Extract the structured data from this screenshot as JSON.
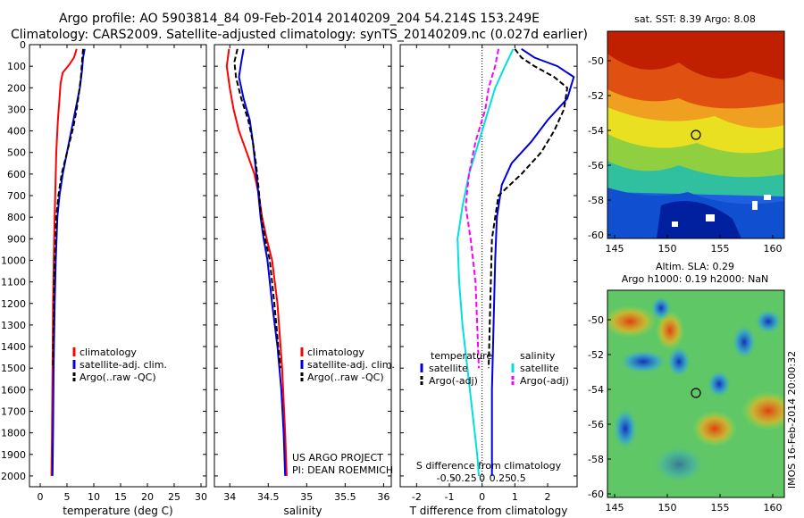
{
  "header": {
    "line1": "Argo profile: AO 5903814_84 09-Feb-2014 20140209_204 54.214S 153.249E",
    "line2": "Climatology: CARS2009. Satellite-adjusted climatology: synTS_20140209.nc (0.027d earlier)"
  },
  "colors": {
    "climatology": "#ff0000",
    "satellite": "#0000dd",
    "argo": "#000000",
    "s_sat": "#00e0e0",
    "s_argo": "#ff00ff"
  },
  "chart_data": [
    {
      "type": "line",
      "name": "temperature-panel",
      "xlabel": "temperature (deg C)",
      "xticks": [
        0,
        5,
        10,
        15,
        20,
        25,
        30
      ],
      "xlim": [
        -2,
        31
      ],
      "ylim": [
        0,
        2050
      ],
      "yticks": [
        0,
        100,
        200,
        300,
        400,
        500,
        600,
        700,
        800,
        900,
        1000,
        1100,
        1200,
        1300,
        1400,
        1500,
        1600,
        1700,
        1800,
        1900,
        2000
      ],
      "legend": [
        "climatology",
        "satellite-adj. clim.",
        "Argo(..raw -QC)"
      ],
      "series": [
        {
          "name": "climatology",
          "color": "#ff0000",
          "dash": "",
          "points": [
            [
              6.8,
              20
            ],
            [
              6.3,
              60
            ],
            [
              5.5,
              90
            ],
            [
              4.2,
              130
            ],
            [
              3.8,
              180
            ],
            [
              3.6,
              250
            ],
            [
              3.3,
              350
            ],
            [
              3.0,
              500
            ],
            [
              2.8,
              700
            ],
            [
              2.6,
              900
            ],
            [
              2.4,
              1200
            ],
            [
              2.3,
              1500
            ],
            [
              2.2,
              1800
            ],
            [
              2.1,
              2000
            ]
          ]
        },
        {
          "name": "satellite-adj. clim.",
          "color": "#0000dd",
          "dash": "",
          "points": [
            [
              8.3,
              20
            ],
            [
              8.0,
              60
            ],
            [
              7.8,
              120
            ],
            [
              7.4,
              200
            ],
            [
              6.6,
              300
            ],
            [
              5.8,
              400
            ],
            [
              5.0,
              500
            ],
            [
              4.2,
              600
            ],
            [
              3.6,
              700
            ],
            [
              3.2,
              800
            ],
            [
              2.9,
              1000
            ],
            [
              2.7,
              1200
            ],
            [
              2.5,
              1500
            ],
            [
              2.4,
              1800
            ],
            [
              2.3,
              2000
            ]
          ]
        },
        {
          "name": "Argo(..raw -QC)",
          "color": "#000000",
          "dash": "6,3",
          "points": [
            [
              8.0,
              20
            ],
            [
              7.8,
              80
            ],
            [
              7.6,
              150
            ],
            [
              7.2,
              230
            ],
            [
              6.8,
              300
            ],
            [
              6.2,
              380
            ],
            [
              5.5,
              450
            ],
            [
              4.8,
              520
            ],
            [
              4.0,
              600
            ],
            [
              3.4,
              700
            ],
            [
              3.0,
              800
            ],
            [
              2.8,
              950
            ],
            [
              2.6,
              1100
            ],
            [
              2.5,
              1300
            ],
            [
              2.4,
              1500
            ]
          ]
        }
      ]
    },
    {
      "type": "line",
      "name": "salinity-panel",
      "xlabel": "salinity",
      "xticks": [
        34,
        34.5,
        35,
        35.5,
        36
      ],
      "xlim": [
        33.8,
        36.1
      ],
      "ylim": [
        0,
        2050
      ],
      "legend": [
        "climatology",
        "satellite-adj. clim.",
        "Argo(..raw -QC)"
      ],
      "annotation": [
        "US ARGO PROJECT",
        "PI: DEAN ROEMMICH"
      ],
      "series": [
        {
          "name": "climatology",
          "color": "#ff0000",
          "dash": "",
          "points": [
            [
              33.99,
              20
            ],
            [
              33.96,
              100
            ],
            [
              34.0,
              200
            ],
            [
              34.05,
              300
            ],
            [
              34.12,
              400
            ],
            [
              34.22,
              500
            ],
            [
              34.32,
              600
            ],
            [
              34.38,
              700
            ],
            [
              34.42,
              800
            ],
            [
              34.48,
              900
            ],
            [
              34.55,
              1000
            ],
            [
              34.62,
              1200
            ],
            [
              34.68,
              1500
            ],
            [
              34.72,
              1800
            ],
            [
              34.74,
              2000
            ]
          ]
        },
        {
          "name": "satellite-adj. clim.",
          "color": "#0000dd",
          "dash": "",
          "points": [
            [
              34.18,
              20
            ],
            [
              34.15,
              80
            ],
            [
              34.12,
              150
            ],
            [
              34.18,
              250
            ],
            [
              34.26,
              350
            ],
            [
              34.3,
              450
            ],
            [
              34.33,
              550
            ],
            [
              34.36,
              650
            ],
            [
              34.4,
              800
            ],
            [
              34.44,
              900
            ],
            [
              34.49,
              1000
            ],
            [
              34.55,
              1200
            ],
            [
              34.62,
              1400
            ],
            [
              34.67,
              1600
            ],
            [
              34.7,
              1800
            ],
            [
              34.72,
              2000
            ]
          ]
        },
        {
          "name": "Argo(..raw -QC)",
          "color": "#000000",
          "dash": "6,3",
          "points": [
            [
              34.1,
              20
            ],
            [
              34.06,
              80
            ],
            [
              34.08,
              150
            ],
            [
              34.15,
              250
            ],
            [
              34.24,
              350
            ],
            [
              34.3,
              450
            ],
            [
              34.34,
              550
            ],
            [
              34.37,
              650
            ],
            [
              34.41,
              800
            ],
            [
              34.46,
              900
            ],
            [
              34.52,
              1000
            ],
            [
              34.58,
              1200
            ],
            [
              34.63,
              1400
            ],
            [
              34.66,
              1500
            ]
          ]
        }
      ]
    },
    {
      "type": "line",
      "name": "difference-panel",
      "xlabel": "T difference from climatology",
      "xticks": [
        -2,
        -1,
        0,
        1,
        2
      ],
      "xlim": [
        -2.5,
        2.9
      ],
      "second_axis_label": "S difference from climatology",
      "second_axis_ticks": [
        "-0.5",
        "-0.25",
        "0",
        "0.25",
        "0.5"
      ],
      "ylim": [
        0,
        2050
      ],
      "legend_left_title": "temperature",
      "legend_right_title": "salinity",
      "legend_left": [
        "satellite",
        "Argo(-adj)"
      ],
      "legend_right": [
        "satellite",
        "Argo(-adj)"
      ],
      "series": [
        {
          "name": "T satellite",
          "color": "#0000dd",
          "dash": "",
          "points": [
            [
              1.2,
              20
            ],
            [
              1.6,
              60
            ],
            [
              2.3,
              100
            ],
            [
              2.8,
              150
            ],
            [
              2.6,
              250
            ],
            [
              2.0,
              350
            ],
            [
              1.5,
              450
            ],
            [
              0.9,
              550
            ],
            [
              0.6,
              650
            ],
            [
              0.45,
              800
            ],
            [
              0.4,
              1000
            ],
            [
              0.35,
              1300
            ],
            [
              0.3,
              1600
            ],
            [
              0.3,
              2000
            ]
          ]
        },
        {
          "name": "T Argo(-adj)",
          "color": "#000000",
          "dash": "6,3",
          "points": [
            [
              1.0,
              20
            ],
            [
              1.2,
              60
            ],
            [
              1.6,
              100
            ],
            [
              2.2,
              150
            ],
            [
              2.6,
              200
            ],
            [
              2.5,
              300
            ],
            [
              2.2,
              400
            ],
            [
              1.8,
              500
            ],
            [
              1.2,
              600
            ],
            [
              0.5,
              700
            ],
            [
              0.3,
              900
            ],
            [
              0.25,
              1200
            ],
            [
              0.2,
              1500
            ]
          ]
        },
        {
          "name": "S satellite",
          "color": "#00e0e0",
          "dash": "",
          "points": [
            [
              0.95,
              20
            ],
            [
              0.7,
              100
            ],
            [
              0.4,
              200
            ],
            [
              0.2,
              300
            ],
            [
              -0.1,
              450
            ],
            [
              -0.4,
              600
            ],
            [
              -0.6,
              750
            ],
            [
              -0.75,
              900
            ],
            [
              -0.7,
              1100
            ],
            [
              -0.6,
              1300
            ],
            [
              -0.45,
              1500
            ],
            [
              -0.3,
              1700
            ],
            [
              -0.15,
              1900
            ],
            [
              -0.1,
              2000
            ]
          ]
        },
        {
          "name": "S Argo(-adj)",
          "color": "#ff00ff",
          "dash": "6,3",
          "points": [
            [
              0.5,
              20
            ],
            [
              0.4,
              100
            ],
            [
              0.2,
              200
            ],
            [
              0.1,
              300
            ],
            [
              -0.2,
              450
            ],
            [
              -0.4,
              600
            ],
            [
              -0.5,
              750
            ],
            [
              -0.35,
              900
            ],
            [
              -0.2,
              1100
            ],
            [
              -0.15,
              1300
            ],
            [
              -0.1,
              1500
            ]
          ]
        }
      ]
    }
  ],
  "maps": {
    "sst": {
      "title": "sat. SST: 8.39  Argo: 8.08",
      "yticks": [
        "-50",
        "-52",
        "-54",
        "-56",
        "-58",
        "-60"
      ],
      "xticks": [
        "145",
        "150",
        "155",
        "160"
      ]
    },
    "sla": {
      "title1": "Altim. SLA: 0.29",
      "title2": "Argo h1000: 0.19  h2000: NaN",
      "yticks": [
        "-50",
        "-52",
        "-54",
        "-56",
        "-58",
        "-60"
      ],
      "xticks": [
        "145",
        "150",
        "155",
        "160"
      ]
    },
    "footer": "IMOS 16-Feb-2014 20:00:32"
  }
}
